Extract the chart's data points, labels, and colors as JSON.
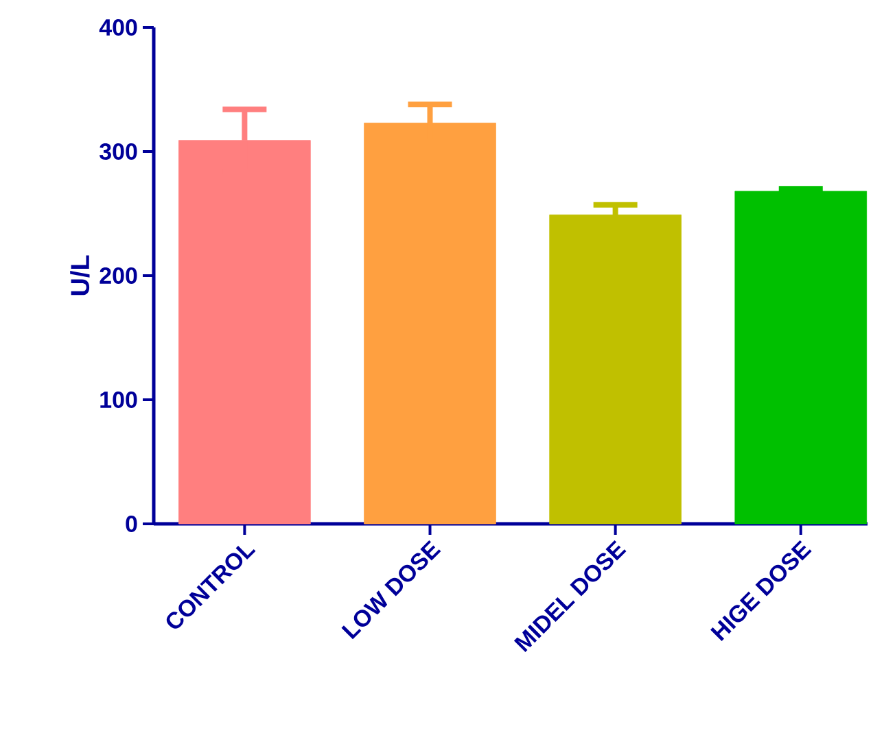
{
  "chart_data": {
    "type": "bar",
    "ylabel": "U/L",
    "categories": [
      "CONTROL",
      "LOW DOSE",
      "MIDEL DOSE",
      "HIGE DOSE"
    ],
    "values": [
      309,
      323,
      249,
      268
    ],
    "errors": [
      25,
      15,
      8,
      2
    ],
    "colors": [
      "#ff7f7f",
      "#ffa040",
      "#c0c000",
      "#00c000"
    ],
    "ylim": [
      0,
      400
    ],
    "yticks": [
      0,
      100,
      200,
      300,
      400
    ],
    "grid": false
  }
}
